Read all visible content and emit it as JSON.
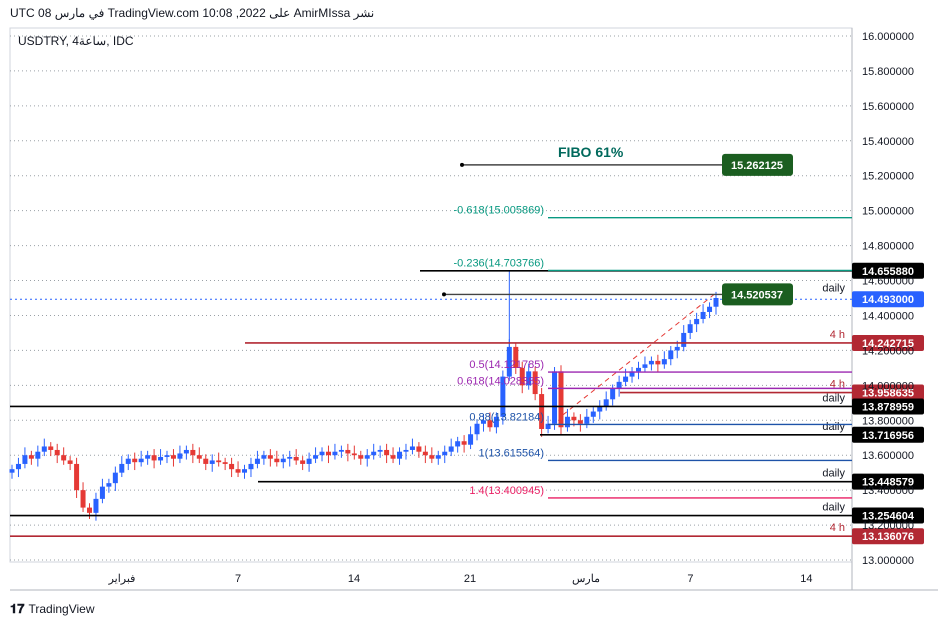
{
  "header": {
    "text": "نشر AmirMIssa على TradingView.com 10:08 ,2022 في مارس 08 UTC"
  },
  "symbol": {
    "text": "USDTRY, 4ساعة, IDC"
  },
  "footer": {
    "logo_text": "TradingView"
  },
  "chart_data": {
    "type": "candlestick",
    "symbol": "USDTRY",
    "timeframe": "4ساعة",
    "source": "IDC",
    "ylim": [
      13.0,
      16.0
    ],
    "y_ticks": [
      16.0,
      15.8,
      15.6,
      15.4,
      15.2,
      15.0,
      14.8,
      14.6,
      14.4,
      14.2,
      14.0,
      13.8,
      13.6,
      13.4,
      13.2,
      13.0
    ],
    "y_tick_labels": [
      "16.000000",
      "15.800000",
      "15.600000",
      "15.400000",
      "15.200000",
      "15.000000",
      "14.800000",
      "14.600000",
      "14.400000",
      "14.200000",
      "14.000000",
      "13.800000",
      "13.600000",
      "13.400000",
      "13.200000",
      "13.000000"
    ],
    "x_tick_labels": [
      "فبراير",
      "7",
      "14",
      "21",
      "مارس",
      "7",
      "14"
    ],
    "x_tick_index": [
      0,
      10,
      20,
      30,
      40,
      49,
      59
    ],
    "candle_start": -10,
    "candles_close": [
      13.52,
      13.55,
      13.6,
      13.58,
      13.62,
      13.65,
      13.63,
      13.6,
      13.57,
      13.55,
      13.4,
      13.3,
      13.27,
      13.35,
      13.42,
      13.44,
      13.5,
      13.55,
      13.58,
      13.56,
      13.58,
      13.6,
      13.57,
      13.59,
      13.6,
      13.58,
      13.61,
      13.63,
      13.6,
      13.58,
      13.55,
      13.57,
      13.56,
      13.55,
      13.52,
      13.5,
      13.52,
      13.55,
      13.58,
      13.6,
      13.58,
      13.56,
      13.58,
      13.59,
      13.57,
      13.55,
      13.58,
      13.6,
      13.62,
      13.6,
      13.62,
      13.63,
      13.61,
      13.6,
      13.58,
      13.6,
      13.62,
      13.63,
      13.6,
      13.58,
      13.62,
      13.63,
      13.65,
      13.62,
      13.6,
      13.58,
      13.6,
      13.62,
      13.65,
      13.68,
      13.66,
      13.72,
      13.78,
      13.8,
      13.76,
      13.82,
      14.05,
      14.22,
      14.1,
      14.0,
      14.08,
      13.95,
      13.75,
      13.78,
      14.08,
      13.76,
      13.82,
      13.8,
      13.78,
      13.82,
      13.85,
      13.88,
      13.92,
      13.98,
      14.02,
      14.05,
      14.08,
      14.1,
      14.12,
      14.14,
      14.12,
      14.15,
      14.2,
      14.22,
      14.3,
      14.35,
      14.38,
      14.42,
      14.45,
      14.5
    ],
    "last_price": 14.493,
    "levels": [
      {
        "value": 14.65588,
        "label": "14.655880",
        "color": "#000000",
        "note": ""
      },
      {
        "value": 14.493,
        "label": "14.493000",
        "color": "#2962ff",
        "note": ""
      },
      {
        "value": 14.242715,
        "label": "14.242715",
        "color": "#b22833",
        "note": "4 h"
      },
      {
        "value": 13.958635,
        "label": "13.958635",
        "color": "#b22833",
        "note": "4 h"
      },
      {
        "value": 13.878959,
        "label": "13.878959",
        "color": "#000000",
        "note": "daily"
      },
      {
        "value": 13.716956,
        "label": "13.716956",
        "color": "#000000",
        "note": "daily"
      },
      {
        "value": 13.448579,
        "label": "13.448579",
        "color": "#000000",
        "note": "daily"
      },
      {
        "value": 13.254604,
        "label": "13.254604",
        "color": "#000000",
        "note": "daily"
      },
      {
        "value": 13.136076,
        "label": "13.136076",
        "color": "#b22833",
        "note": "4 h"
      }
    ],
    "level_notes_extra": [
      {
        "text": "daily",
        "value": 14.56
      }
    ],
    "fib_levels": [
      {
        "text": "-0.618(15.005869)",
        "value": 15.005869,
        "color": "#089981"
      },
      {
        "text": "-0.236(14.703766)",
        "value": 14.703766,
        "color": "#089981"
      },
      {
        "text": "0.5(14.121785)",
        "value": 14.121785,
        "color": "#9c27b0"
      },
      {
        "text": "0.618(14.028385)",
        "value": 14.028385,
        "color": "#9c27b0"
      },
      {
        "text": "0.88(13.82184)",
        "value": 13.82184,
        "color": "#1e53a8"
      },
      {
        "text": "1(13.615564)",
        "value": 13.615564,
        "color": "#1e53a8"
      },
      {
        "text": "1.4(13.400945)",
        "value": 13.400945,
        "color": "#e91e63"
      }
    ],
    "annotations": [
      {
        "text": "FIBO 61%",
        "value": 15.33,
        "color": "#00695c"
      },
      {
        "text": "15.262125",
        "value": 15.262125,
        "color": "#1b5e20"
      },
      {
        "text": "14.520537",
        "value": 14.520537,
        "color": "#1b5e20"
      }
    ],
    "colors": {
      "up": "#2962ff",
      "down": "#e53935",
      "grid": "#9aa0a6"
    }
  }
}
